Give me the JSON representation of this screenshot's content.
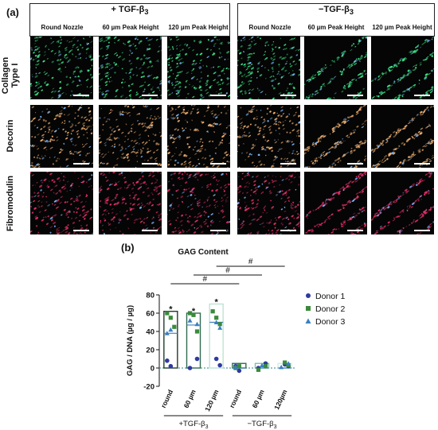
{
  "figure": {
    "panel_a_label": "(a)",
    "panel_b_label": "(b)",
    "groups": [
      {
        "title": "+ TGF-β",
        "sub": "3",
        "columns": [
          "Round Nozzle",
          "60 µm Peak Height",
          "120 µm Peak Height"
        ]
      },
      {
        "title": "−TGF-β",
        "sub": "3",
        "columns": [
          "Round Nozzle",
          "60 µm Peak Height",
          "120 µm Peak Height"
        ]
      }
    ],
    "rows": [
      {
        "label_line1": "Collagen",
        "label_line2": "Type I",
        "stain_color": "#3de88a"
      },
      {
        "label_line1": "Decorin",
        "label_line2": "",
        "stain_color": "#f0b070"
      },
      {
        "label_line1": "Fibromodulin",
        "label_line2": "",
        "stain_color": "#e8306a"
      }
    ]
  },
  "chart_data": {
    "type": "scatter",
    "title": "GAG Content",
    "ylabel": "GAG / DNA (µg / µg)",
    "ylim": [
      -20,
      80
    ],
    "yticks": [
      -20,
      0,
      20,
      40,
      60,
      80
    ],
    "categories": [
      "round",
      "60 µm",
      "120 µm",
      "round",
      "60 µm",
      "120µm"
    ],
    "group_labels": [
      {
        "main": "+TGF-β",
        "sub": "3",
        "categories": [
          0,
          1,
          2
        ]
      },
      {
        "main": "−TGF-β",
        "sub": "3",
        "categories": [
          3,
          4,
          5
        ]
      }
    ],
    "bar_means": [
      38,
      47,
      50,
      0,
      0,
      0
    ],
    "bar_maxes": [
      62,
      60,
      70,
      5,
      5,
      5
    ],
    "bar_colors": [
      "#1f3d2c",
      "#2f6b4f",
      "#bfe3d4",
      "#2f6b4f",
      "#7fc1a8",
      "#cfeee2"
    ],
    "significance": [
      {
        "category": 0,
        "mark": "*"
      },
      {
        "category": 1,
        "mark": "*"
      },
      {
        "category": 2,
        "mark": "*"
      }
    ],
    "brackets": [
      {
        "from": 0,
        "to": 3,
        "mark": "#"
      },
      {
        "from": 1,
        "to": 4,
        "mark": "#"
      },
      {
        "from": 2,
        "to": 5,
        "mark": "#"
      }
    ],
    "series": [
      {
        "name": "Donor 1",
        "marker": "circle",
        "color": "#2f3aa0",
        "points": [
          [
            0,
            8
          ],
          [
            0,
            2
          ],
          [
            1,
            10
          ],
          [
            1,
            0
          ],
          [
            2,
            10
          ],
          [
            2,
            3
          ],
          [
            3,
            2
          ],
          [
            3,
            -3
          ],
          [
            4,
            5
          ],
          [
            4,
            0
          ],
          [
            5,
            4
          ],
          [
            5,
            2
          ]
        ]
      },
      {
        "name": "Donor 2",
        "marker": "square",
        "color": "#3a8a3a",
        "points": [
          [
            0,
            60
          ],
          [
            0,
            55
          ],
          [
            0,
            45
          ],
          [
            1,
            60
          ],
          [
            1,
            58
          ],
          [
            1,
            40
          ],
          [
            2,
            62
          ],
          [
            2,
            55
          ],
          [
            2,
            48
          ],
          [
            3,
            0
          ],
          [
            3,
            2
          ],
          [
            4,
            2
          ],
          [
            4,
            -2
          ],
          [
            5,
            6
          ],
          [
            5,
            3
          ]
        ]
      },
      {
        "name": "Donor 3",
        "marker": "triangle",
        "color": "#3a7fc0",
        "points": [
          [
            0,
            38
          ],
          [
            0,
            42
          ],
          [
            1,
            48
          ],
          [
            1,
            52
          ],
          [
            2,
            50
          ],
          [
            2,
            44
          ],
          [
            3,
            1
          ],
          [
            4,
            3
          ],
          [
            5,
            5
          ],
          [
            5,
            1
          ]
        ]
      }
    ],
    "reference_line": 0
  }
}
